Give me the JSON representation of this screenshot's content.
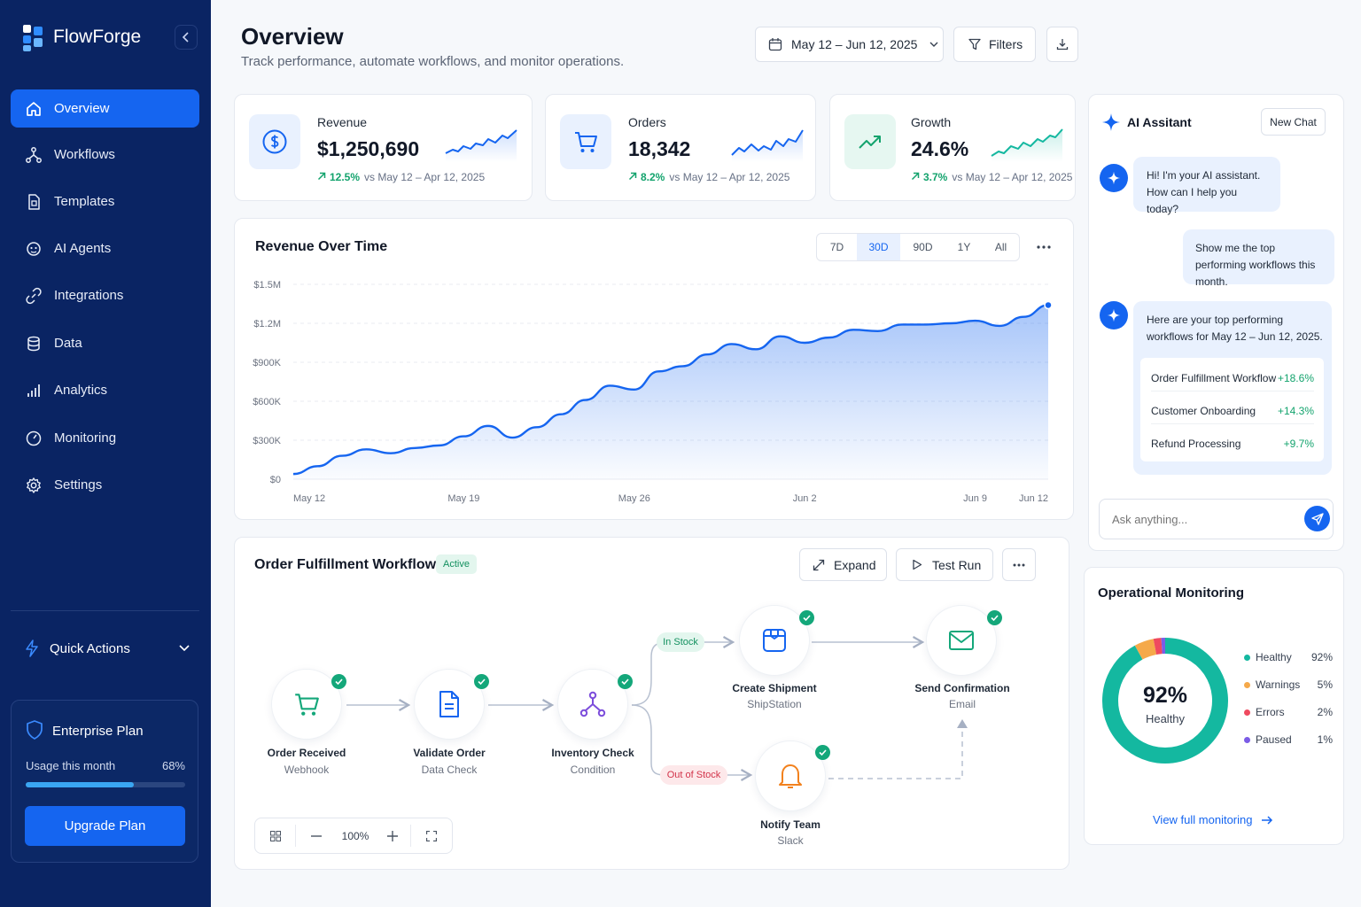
{
  "app": {
    "name": "FlowForge"
  },
  "sidebar": {
    "items": [
      {
        "label": "Overview",
        "icon": "home-icon",
        "active": true
      },
      {
        "label": "Workflows",
        "icon": "workflow-icon"
      },
      {
        "label": "Templates",
        "icon": "template-icon"
      },
      {
        "label": "AI Agents",
        "icon": "robot-icon"
      },
      {
        "label": "Integrations",
        "icon": "link-icon"
      },
      {
        "label": "Data",
        "icon": "database-icon"
      },
      {
        "label": "Analytics",
        "icon": "bar-chart-icon"
      },
      {
        "label": "Monitoring",
        "icon": "gauge-icon"
      },
      {
        "label": "Settings",
        "icon": "gear-icon"
      }
    ],
    "quick_actions": "Quick Actions",
    "plan": {
      "title": "Enterprise Plan",
      "usage_label": "Usage this month",
      "usage_value": "68%",
      "usage_fraction": 0.68,
      "upgrade_label": "Upgrade Plan"
    }
  },
  "header": {
    "title": "Overview",
    "subtitle": "Track performance, automate workflows, and monitor operations.",
    "date_range": "May 12 – Jun 12, 2025",
    "filters_label": "Filters"
  },
  "kpis": [
    {
      "label": "Revenue",
      "value": "$1,250,690",
      "delta": "12.5%",
      "compare": "vs May 12 – Apr 12, 2025",
      "icon": "dollar-icon",
      "color": "#1565f0"
    },
    {
      "label": "Orders",
      "value": "18,342",
      "delta": "8.2%",
      "compare": "vs May 12 – Apr 12, 2025",
      "icon": "cart-icon",
      "color": "#1565f0"
    },
    {
      "label": "Growth",
      "value": "24.6%",
      "delta": "3.7%",
      "compare": "vs May 12 – Apr 12, 2025",
      "icon": "trend-up-icon",
      "color": "#13a36d"
    }
  ],
  "revenue": {
    "title": "Revenue Over Time",
    "ranges": [
      "7D",
      "30D",
      "90D",
      "1Y",
      "All"
    ],
    "active_range": "30D",
    "chart_data": {
      "type": "area",
      "x": [
        "May 12",
        "May 13",
        "May 14",
        "May 15",
        "May 16",
        "May 17",
        "May 18",
        "May 19",
        "May 20",
        "May 21",
        "May 22",
        "May 23",
        "May 24",
        "May 25",
        "May 26",
        "May 27",
        "May 28",
        "May 29",
        "May 30",
        "May 31",
        "Jun 1",
        "Jun 2",
        "Jun 3",
        "Jun 4",
        "Jun 5",
        "Jun 6",
        "Jun 7",
        "Jun 8",
        "Jun 9",
        "Jun 10",
        "Jun 11",
        "Jun 12"
      ],
      "values": [
        40000,
        100000,
        180000,
        230000,
        200000,
        240000,
        260000,
        330000,
        410000,
        320000,
        400000,
        500000,
        610000,
        720000,
        690000,
        830000,
        870000,
        960000,
        1040000,
        1000000,
        1100000,
        1050000,
        1090000,
        1150000,
        1140000,
        1190000,
        1190000,
        1200000,
        1220000,
        1180000,
        1250000,
        1340000
      ],
      "xticks": [
        "May 12",
        "May 19",
        "May 26",
        "Jun 2",
        "Jun 9",
        "Jun 12"
      ],
      "yticks": [
        "$0",
        "$300K",
        "$600K",
        "$900K",
        "$1.2M",
        "$1.5M"
      ],
      "ylim": [
        0,
        1500000
      ],
      "grid": true,
      "color": "#1565f0"
    }
  },
  "workflow": {
    "title": "Order Fulfillment Workflow",
    "status": "Active",
    "expand_label": "Expand",
    "test_run_label": "Test Run",
    "zoom": "100%",
    "nodes": [
      {
        "title": "Order Received",
        "sub": "Webhook",
        "icon": "cart-icon",
        "color": "#14a77a"
      },
      {
        "title": "Validate Order",
        "sub": "Data Check",
        "icon": "document-icon",
        "color": "#1565f0"
      },
      {
        "title": "Inventory Check",
        "sub": "Condition",
        "icon": "branch-icon",
        "color": "#7c4ddb"
      },
      {
        "title": "Create Shipment",
        "sub": "ShipStation",
        "icon": "box-icon",
        "color": "#1565f0"
      },
      {
        "title": "Send Confirmation",
        "sub": "Email",
        "icon": "mail-icon",
        "color": "#14a77a"
      },
      {
        "title": "Notify Team",
        "sub": "Slack",
        "icon": "bell-icon",
        "color": "#f2811d"
      }
    ],
    "branches": {
      "in_stock": "In Stock",
      "out_of_stock": "Out of Stock"
    }
  },
  "assistant": {
    "title": "AI Assitant",
    "new_chat": "New Chat",
    "messages": [
      {
        "from": "bot",
        "text": "Hi! I'm your AI assistant. How can I help you today?"
      },
      {
        "from": "user",
        "text": "Show me the top performing workflows this month."
      },
      {
        "from": "bot",
        "text": "Here are your top performing workflows for May 12 – Jun 12, 2025."
      }
    ],
    "top_workflows": [
      {
        "name": "Order Fulfillment Workflow",
        "change": "+18.6%"
      },
      {
        "name": "Customer Onboarding",
        "change": "+14.3%"
      },
      {
        "name": "Refund Processing",
        "change": "+9.7%"
      }
    ],
    "input_placeholder": "Ask anything..."
  },
  "monitoring": {
    "title": "Operational Monitoring",
    "center_value": "92%",
    "center_label": "Healthy",
    "link": "View full monitoring",
    "chart_data": {
      "type": "pie",
      "categories": [
        "Healthy",
        "Warnings",
        "Errors",
        "Paused"
      ],
      "values": [
        92,
        5,
        2,
        1
      ],
      "labels": [
        "92%",
        "5%",
        "2%",
        "1%"
      ],
      "colors": [
        "#14b8a0",
        "#f5a94a",
        "#ef4a5f",
        "#7b5ce6"
      ]
    }
  }
}
